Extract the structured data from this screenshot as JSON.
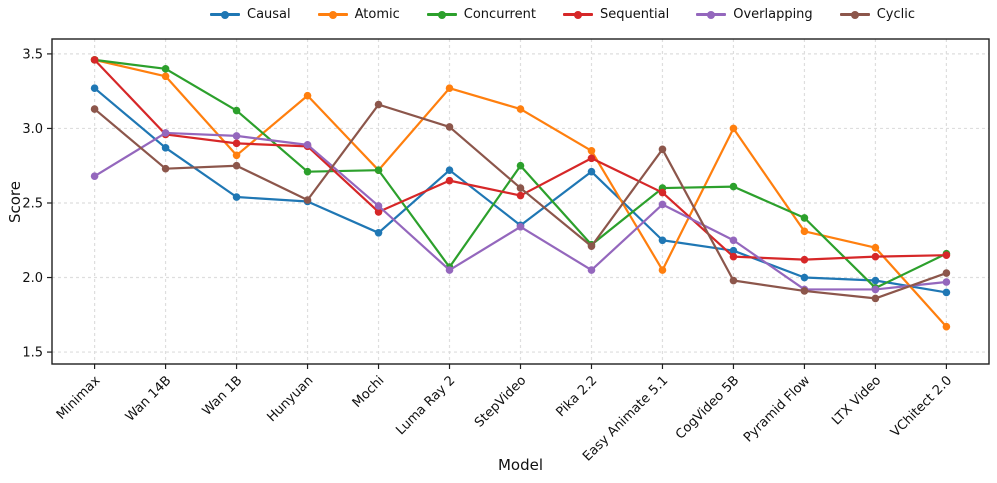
{
  "chart_data": {
    "type": "line",
    "title": "",
    "xlabel": "Model",
    "ylabel": "Score",
    "legend_position": "top",
    "grid": true,
    "categories": [
      "Minimax",
      "Wan 14B",
      "Wan 1B",
      "Hunyuan",
      "Mochi",
      "Luma Ray 2",
      "StepVideo",
      "Pika 2.2",
      "Easy Animate 5.1",
      "CogVideo 5B",
      "Pyramid Flow",
      "LTX Video",
      "VChitect 2.0"
    ],
    "yticks": [
      1.5,
      2.0,
      2.5,
      3.0,
      3.5
    ],
    "ylim": [
      1.42,
      3.6
    ],
    "series": [
      {
        "name": "Causal",
        "color": "#1f77b4",
        "values": [
          3.27,
          2.87,
          2.54,
          2.51,
          2.3,
          2.72,
          2.35,
          2.71,
          2.25,
          2.18,
          2.0,
          1.98,
          1.9
        ]
      },
      {
        "name": "Atomic",
        "color": "#ff7f0e",
        "values": [
          3.46,
          3.35,
          2.82,
          3.22,
          2.72,
          3.27,
          3.13,
          2.85,
          2.05,
          3.0,
          2.31,
          2.2,
          1.67
        ]
      },
      {
        "name": "Concurrent",
        "color": "#2ca02c",
        "values": [
          3.46,
          3.4,
          3.12,
          2.71,
          2.72,
          2.07,
          2.75,
          2.22,
          2.6,
          2.61,
          2.4,
          1.93,
          2.16
        ]
      },
      {
        "name": "Sequential",
        "color": "#d62728",
        "values": [
          3.46,
          2.96,
          2.9,
          2.88,
          2.44,
          2.65,
          2.55,
          2.8,
          2.57,
          2.14,
          2.12,
          2.14,
          2.15
        ]
      },
      {
        "name": "Overlapping",
        "color": "#9467bd",
        "values": [
          2.68,
          2.97,
          2.95,
          2.89,
          2.48,
          2.05,
          2.34,
          2.05,
          2.49,
          2.25,
          1.92,
          1.92,
          1.97
        ]
      },
      {
        "name": "Cyclic",
        "color": "#8c564b",
        "values": [
          3.13,
          2.73,
          2.75,
          2.52,
          3.16,
          3.01,
          2.6,
          2.21,
          2.86,
          1.98,
          1.91,
          1.86,
          2.03
        ]
      }
    ]
  }
}
